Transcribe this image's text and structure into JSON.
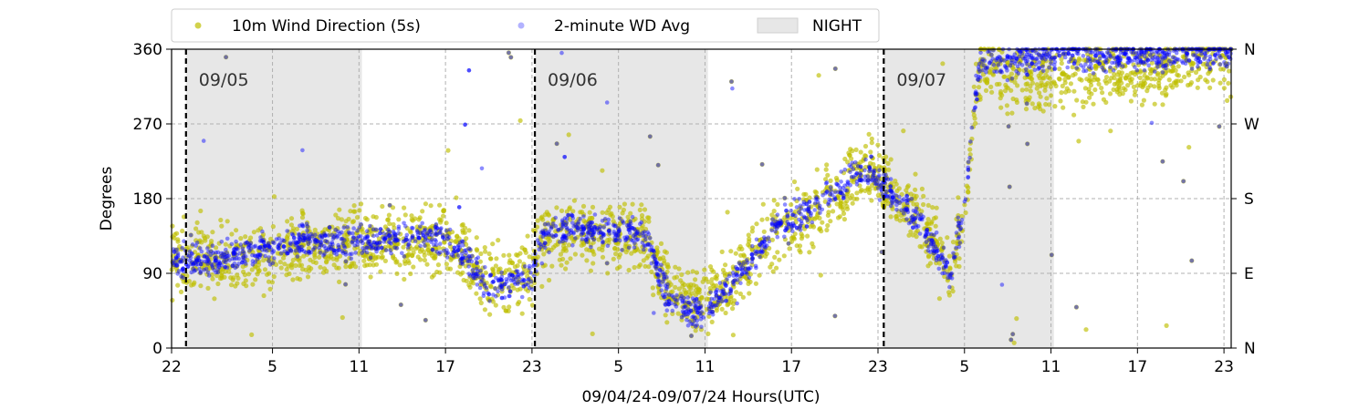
{
  "chart_data": {
    "type": "scatter",
    "xlabel": "09/04/24-09/07/24  Hours(UTC)",
    "ylabel": "Degrees",
    "x_range_hours": [
      22,
      95.5
    ],
    "ylim": [
      0,
      360
    ],
    "x_ticks": [
      {
        "h": 22,
        "label": "22"
      },
      {
        "h": 29,
        "label": "5"
      },
      {
        "h": 35,
        "label": "11"
      },
      {
        "h": 41,
        "label": "17"
      },
      {
        "h": 47,
        "label": "23"
      },
      {
        "h": 53,
        "label": "5"
      },
      {
        "h": 59,
        "label": "11"
      },
      {
        "h": 65,
        "label": "17"
      },
      {
        "h": 71,
        "label": "23"
      },
      {
        "h": 77,
        "label": "5"
      },
      {
        "h": 83,
        "label": "11"
      },
      {
        "h": 89,
        "label": "17"
      },
      {
        "h": 95,
        "label": "23"
      }
    ],
    "y_ticks": [
      0,
      90,
      180,
      270,
      360
    ],
    "y_right_ticks": [
      {
        "value": 0,
        "label": "N"
      },
      {
        "value": 90,
        "label": "E"
      },
      {
        "value": 180,
        "label": "S"
      },
      {
        "value": 270,
        "label": "W"
      },
      {
        "value": 360,
        "label": "N"
      }
    ],
    "grid": true,
    "legend_position": "top",
    "day_markers": [
      {
        "h": 23,
        "label": "09/05"
      },
      {
        "h": 47.2,
        "label": "09/06"
      },
      {
        "h": 71.4,
        "label": "09/07"
      }
    ],
    "night_periods": [
      [
        23,
        35.2
      ],
      [
        47.2,
        59.2
      ],
      [
        71.4,
        83.2
      ]
    ],
    "series": [
      {
        "name": "10m Wind Direction (5s)",
        "color": "#bfbf00",
        "trend": [
          [
            22,
            110
          ],
          [
            25,
            100
          ],
          [
            28,
            112
          ],
          [
            31,
            125
          ],
          [
            34,
            125
          ],
          [
            37,
            128
          ],
          [
            40,
            130
          ],
          [
            41,
            125
          ],
          [
            42,
            115
          ],
          [
            44,
            80
          ],
          [
            46,
            85
          ],
          [
            47,
            95
          ],
          [
            48,
            135
          ],
          [
            50,
            140
          ],
          [
            52,
            135
          ],
          [
            54,
            135
          ],
          [
            55,
            125
          ],
          [
            56.5,
            70
          ],
          [
            58,
            60
          ],
          [
            59,
            55
          ],
          [
            60,
            70
          ],
          [
            62,
            100
          ],
          [
            64,
            140
          ],
          [
            66,
            160
          ],
          [
            68,
            180
          ],
          [
            69,
            200
          ],
          [
            70,
            215
          ],
          [
            71,
            210
          ],
          [
            72,
            190
          ],
          [
            74,
            150
          ],
          [
            76,
            90
          ],
          [
            77,
            160
          ],
          [
            78,
            330
          ],
          [
            79,
            345
          ],
          [
            80,
            330
          ],
          [
            82,
            320
          ],
          [
            84,
            330
          ],
          [
            86,
            335
          ],
          [
            88,
            340
          ],
          [
            90,
            330
          ],
          [
            92,
            345
          ],
          [
            94,
            350
          ],
          [
            95.5,
            345
          ]
        ],
        "spread": 30
      },
      {
        "name": "2-minute WD Avg",
        "color": "#0000ff",
        "trend": [
          [
            22,
            105
          ],
          [
            25,
            105
          ],
          [
            28,
            118
          ],
          [
            31,
            130
          ],
          [
            34,
            125
          ],
          [
            37,
            130
          ],
          [
            40,
            135
          ],
          [
            41,
            130
          ],
          [
            42,
            115
          ],
          [
            44,
            75
          ],
          [
            46,
            80
          ],
          [
            47,
            90
          ],
          [
            48,
            140
          ],
          [
            50,
            145
          ],
          [
            52,
            140
          ],
          [
            54,
            140
          ],
          [
            55,
            125
          ],
          [
            56.5,
            60
          ],
          [
            58,
            45
          ],
          [
            59,
            40
          ],
          [
            60,
            65
          ],
          [
            62,
            100
          ],
          [
            64,
            145
          ],
          [
            66,
            165
          ],
          [
            68,
            185
          ],
          [
            69,
            205
          ],
          [
            70,
            215
          ],
          [
            71,
            205
          ],
          [
            72,
            185
          ],
          [
            74,
            150
          ],
          [
            76,
            85
          ],
          [
            77,
            170
          ],
          [
            78,
            340
          ],
          [
            79,
            350
          ],
          [
            80,
            345
          ],
          [
            82,
            350
          ],
          [
            84,
            355
          ],
          [
            86,
            350
          ],
          [
            88,
            355
          ],
          [
            90,
            350
          ],
          [
            92,
            355
          ],
          [
            94,
            355
          ],
          [
            95.5,
            355
          ]
        ],
        "spread": 14
      }
    ]
  }
}
